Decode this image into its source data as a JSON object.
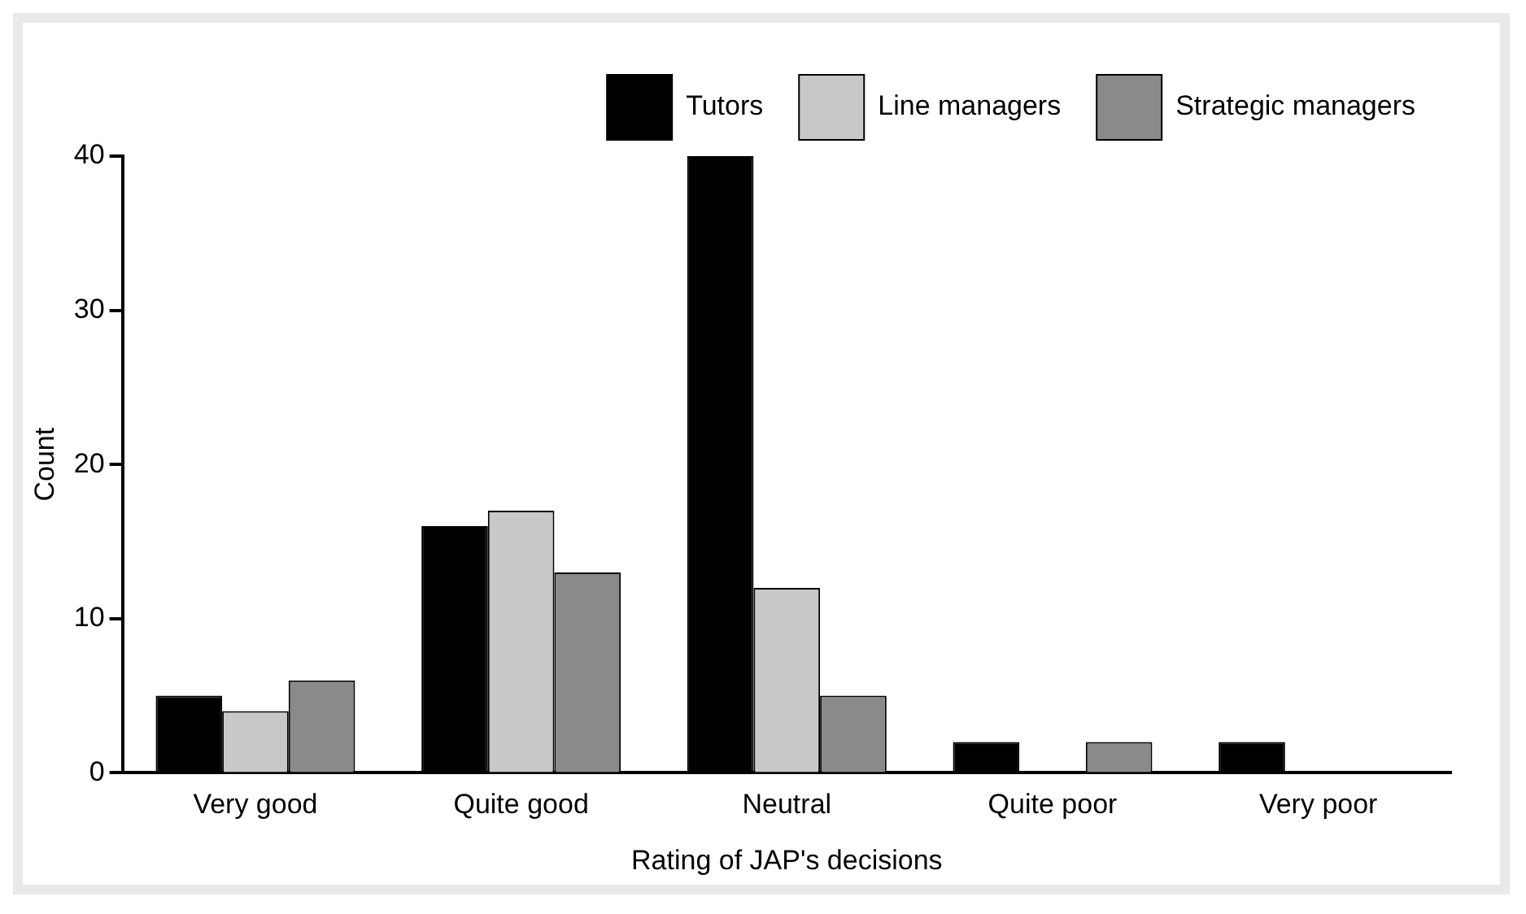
{
  "chart_data": {
    "type": "bar",
    "xlabel": "Rating of JAP's decisions",
    "ylabel": "Count",
    "categories": [
      "Very good",
      "Quite good",
      "Neutral",
      "Quite poor",
      "Very poor"
    ],
    "series": [
      {
        "name": "Tutors",
        "color": "#000000",
        "values": [
          5,
          16,
          40,
          2,
          2
        ]
      },
      {
        "name": "Line managers",
        "color": "#c8c8c8",
        "values": [
          4,
          17,
          12,
          0,
          0
        ]
      },
      {
        "name": "Strategic managers",
        "color": "#8a8a8a",
        "values": [
          6,
          13,
          5,
          2,
          0
        ]
      }
    ],
    "ylim": [
      0,
      40
    ],
    "yticks": [
      0,
      10,
      20,
      30,
      40
    ],
    "grid": false,
    "legend": "top right"
  }
}
